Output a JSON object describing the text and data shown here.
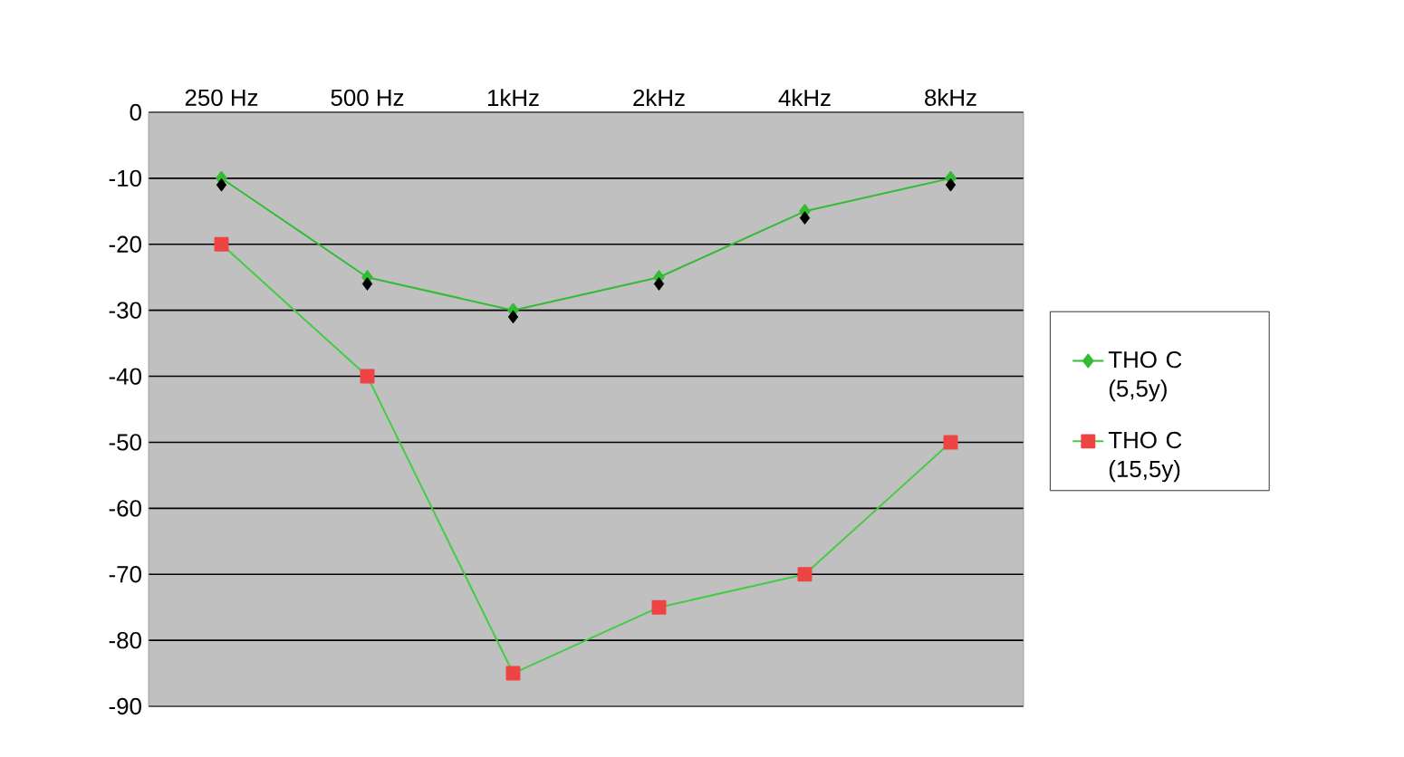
{
  "chart_data": {
    "type": "line",
    "categories": [
      "250 Hz",
      "500 Hz",
      "1kHz",
      "2kHz",
      "4kHz",
      "8kHz"
    ],
    "series": [
      {
        "name": "THO C (5,5y)",
        "color": "#33bb33",
        "marker": "diamond",
        "values": [
          -10,
          -25,
          -30,
          -25,
          -15,
          -10
        ]
      },
      {
        "name": "THO C (15,5y)",
        "color": "#44cc44",
        "colors": [
          "#ee4444",
          "#ee4444",
          "#ee4444",
          "#ee4444",
          "#ee4444",
          "#ee4444"
        ],
        "marker": "square",
        "values": [
          -20,
          -40,
          -85,
          -75,
          -70,
          -50
        ]
      },
      {
        "type": "scatter",
        "color": "#000000",
        "marker": "diamond",
        "x": [
          "250 Hz",
          "500 Hz",
          "1kHz",
          "2kHz",
          "4kHz",
          "8kHz"
        ],
        "values": [
          -11,
          -26,
          -31,
          -26,
          -16,
          -11
        ]
      }
    ],
    "ylim": [
      -90,
      0
    ],
    "yticks": [
      0,
      -10,
      -20,
      -30,
      -40,
      -50,
      -60,
      -70,
      -80,
      -90
    ],
    "grid": "y",
    "legend": "right"
  }
}
